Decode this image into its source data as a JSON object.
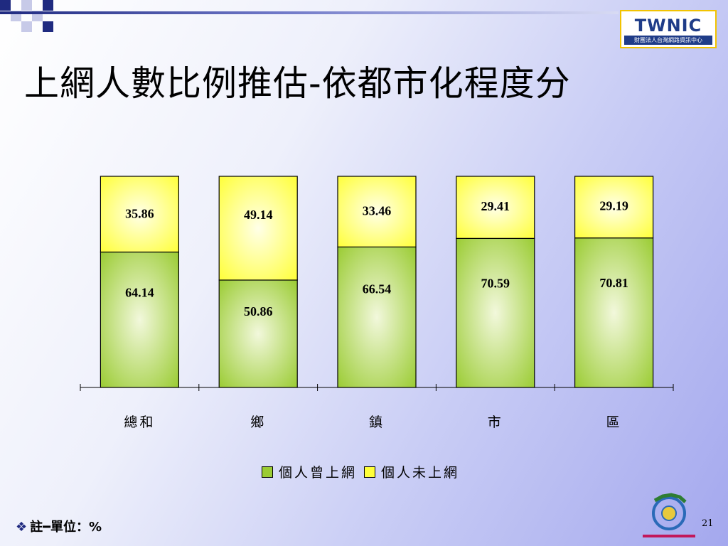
{
  "page": {
    "title": "上網人數比例推估-依都市化程度分",
    "note_bullet": "❖",
    "note": "註━單位：%",
    "page_number": "21",
    "logo_text": "TWNIC",
    "logo_sub": "財團法人台灣網路資訊中心"
  },
  "colors": {
    "used": "#9bcc34",
    "used_light": "#f2f8dc",
    "not_used": "#ffff3a",
    "not_used_light": "#ffffe8"
  },
  "chart_data": {
    "type": "bar",
    "stacked": true,
    "categories": [
      "總和",
      "鄉",
      "鎮",
      "市",
      "區"
    ],
    "series": [
      {
        "name": "個人曾上網",
        "values": [
          64.14,
          50.86,
          66.54,
          70.59,
          70.81
        ]
      },
      {
        "name": "個人未上網",
        "values": [
          35.86,
          49.14,
          33.46,
          29.41,
          29.19
        ]
      }
    ],
    "ylim": [
      0,
      100
    ],
    "grid": false,
    "legend_position": "bottom",
    "data_labels": true
  }
}
